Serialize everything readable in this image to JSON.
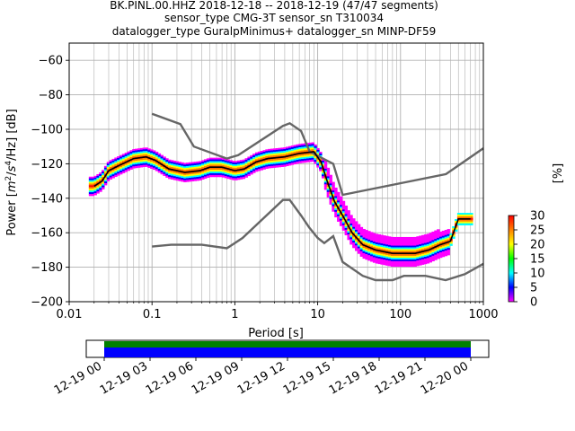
{
  "chart_data": [
    {
      "type": "heatmap",
      "title_lines": [
        "BK.PINL.00.HHZ   2018-12-18 -- 2018-12-19  (47/47 segments)",
        "sensor_type CMG-3T sensor_sn T310034",
        "datalogger_type GuralpMinimus+ datalogger_sn MINP-DF59"
      ],
      "xlabel": "Period [s]",
      "ylabel": "Power [m²/s⁴/Hz] [dB]",
      "ylabel_parts": {
        "prefix": "Power [",
        "m": "m",
        "exp2": "2",
        "slash": "/",
        "s": "s",
        "exp4": "4",
        "suffix": "/Hz] [dB]"
      },
      "x_scale": "log",
      "xlim": [
        0.01,
        1000
      ],
      "ylim": [
        -200,
        -50
      ],
      "x_ticks": [
        0.01,
        0.1,
        1,
        10,
        100,
        1000
      ],
      "x_tick_labels": [
        "0.01",
        "0.1",
        "1",
        "10",
        "100",
        "1000"
      ],
      "y_ticks": [
        -200,
        -180,
        -160,
        -140,
        -120,
        -100,
        -80,
        -60
      ],
      "y_tick_labels": [
        "−200",
        "−180",
        "−160",
        "−140",
        "−120",
        "−100",
        "−80",
        "−60"
      ],
      "grid": true,
      "noise_models": [
        {
          "name": "",
          "color": "#666666",
          "points": [
            [
              0.1,
              -91
            ],
            [
              0.22,
              -97
            ],
            [
              0.32,
              -110
            ],
            [
              0.8,
              -117
            ],
            [
              1.1,
              -115
            ],
            [
              3.8,
              -98
            ],
            [
              4.6,
              -96.5
            ],
            [
              6.3,
              -101
            ],
            [
              8.0,
              -113
            ],
            [
              15.4,
              -120
            ],
            [
              20,
              -138
            ],
            [
              354,
              -126
            ],
            [
              1000,
              -111
            ]
          ]
        },
        {
          "name": "",
          "color": "#666666",
          "points": [
            [
              0.1,
              -168
            ],
            [
              0.17,
              -167
            ],
            [
              0.4,
              -167
            ],
            [
              0.8,
              -169
            ],
            [
              1.24,
              -163
            ],
            [
              3.8,
              -141
            ],
            [
              4.6,
              -141
            ],
            [
              6.3,
              -150
            ],
            [
              7.9,
              -157
            ],
            [
              10,
              -163
            ],
            [
              12,
              -166
            ],
            [
              15.4,
              -162
            ],
            [
              20,
              -177
            ],
            [
              35,
              -185
            ],
            [
              50,
              -187.5
            ],
            [
              80,
              -187.5
            ],
            [
              110,
              -185
            ],
            [
              200,
              -185
            ],
            [
              350,
              -187.5
            ],
            [
              600,
              -184
            ],
            [
              1000,
              -178
            ]
          ]
        }
      ],
      "median": {
        "color": "#000000",
        "points": [
          [
            0.02,
            -133
          ],
          [
            0.025,
            -130
          ],
          [
            0.03,
            -124
          ],
          [
            0.04,
            -121
          ],
          [
            0.06,
            -117
          ],
          [
            0.085,
            -116
          ],
          [
            0.11,
            -118
          ],
          [
            0.16,
            -123
          ],
          [
            0.25,
            -125
          ],
          [
            0.38,
            -124
          ],
          [
            0.5,
            -122
          ],
          [
            0.7,
            -122
          ],
          [
            1.0,
            -124
          ],
          [
            1.3,
            -123
          ],
          [
            1.8,
            -119
          ],
          [
            2.5,
            -117
          ],
          [
            4,
            -116
          ],
          [
            6,
            -114
          ],
          [
            9,
            -113
          ],
          [
            11,
            -119
          ],
          [
            13,
            -130
          ],
          [
            16,
            -142
          ],
          [
            20,
            -150
          ],
          [
            26,
            -160
          ],
          [
            35,
            -167
          ],
          [
            50,
            -170
          ],
          [
            80,
            -172
          ],
          [
            150,
            -172
          ],
          [
            220,
            -170
          ],
          [
            300,
            -167
          ],
          [
            400,
            -165
          ],
          [
            500,
            -152
          ],
          [
            700,
            -152
          ]
        ]
      },
      "color_scale": {
        "name": "[%]",
        "min": 0,
        "max": 30,
        "ticks": [
          0,
          5,
          10,
          15,
          20,
          25,
          30
        ],
        "tick_labels": [
          "0",
          "5",
          "10",
          "15",
          "20",
          "25",
          "30"
        ],
        "colors": [
          "#ffffff",
          "#ff00ff",
          "#0000ff",
          "#00ffff",
          "#00ff00",
          "#ffff00",
          "#ff8000",
          "#ff0000"
        ]
      }
    },
    {
      "type": "timeline",
      "x_tick_labels": [
        "12-19 00",
        "12-19 03",
        "12-19 06",
        "12-19 09",
        "12-19 12",
        "12-19 15",
        "12-19 18",
        "12-19 21",
        "12-20 00"
      ],
      "coverage": [
        {
          "name": "",
          "color": "#008000",
          "start": "12-19 00",
          "end": "12-20 00"
        },
        {
          "name": "",
          "color": "#0000ff",
          "start": "12-19 00",
          "end": "12-20 00"
        }
      ]
    }
  ]
}
